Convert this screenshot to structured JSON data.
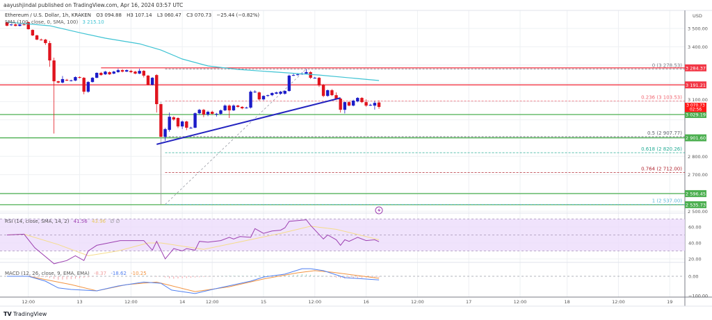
{
  "header": {
    "publisher_line": "aayushjindal published on TradingView.com, Apr 16, 2024 03:57 UTC"
  },
  "legend": {
    "symbol": "Ethereum / U.S. Dollar, 1h, KRAKEN",
    "open": "O3 094.88",
    "high": "H3 107.14",
    "low": "L3 060.47",
    "close": "C3 070.73",
    "change": "−25.44 (−0.82%)",
    "sma_label": "SMA (100, close, 0, SMA, 100)",
    "sma_value": "3 215.10"
  },
  "colors": {
    "up": "#1c1cc8",
    "down": "#e0141e",
    "sma": "#3ec3d3",
    "trendline": "#2424c0",
    "resistance": "#f23645",
    "support": "#4caf50",
    "rsi": "#9c3fb0",
    "rsi_ma": "#f5dc8a",
    "rsi_band": "#ecdcfb",
    "macd": "#4f7ff0",
    "macd_signal": "#f29340"
  },
  "price_axis": {
    "currency": "USD",
    "ticks": [
      {
        "value": 3500,
        "label": "3 500.00"
      },
      {
        "value": 3400,
        "label": "3 400.00"
      },
      {
        "value": 3100,
        "label": "3 100.00"
      },
      {
        "value": 2800,
        "label": "2 800.00"
      },
      {
        "value": 2700,
        "label": "2 700.00"
      },
      {
        "value": 2500,
        "label": "2 500.00"
      }
    ],
    "last_price": {
      "value": 3070.73,
      "label": "3 070.73",
      "countdown": "02:56"
    }
  },
  "levels": [
    {
      "price": 3284.37,
      "label": "3 284.37",
      "kind": "resistance",
      "from_hour": 22
    },
    {
      "price": 3191.21,
      "label": "3 191.21",
      "kind": "resistance",
      "from_hour": -2
    },
    {
      "price": 3029.19,
      "label": "3 029.19",
      "kind": "support",
      "from_hour": -2
    },
    {
      "price": 2901.6,
      "label": "2 901.60",
      "kind": "support",
      "from_hour": -2
    },
    {
      "price": 2596.45,
      "label": "2 596.45",
      "kind": "support",
      "from_hour": -2
    },
    {
      "price": 2535.73,
      "label": "2 535.73",
      "kind": "support",
      "from_hour": -2
    }
  ],
  "fib": {
    "from_hour": 37,
    "levels": [
      {
        "price": 3278.53,
        "label": "0 (3 278.53)",
        "color": "#787b86"
      },
      {
        "price": 3103.53,
        "label": "0.236 (3 103.53)",
        "color": "#f06570"
      },
      {
        "price": 2907.77,
        "label": "0.5 (2 907.77)",
        "color": "#5d606b"
      },
      {
        "price": 2820.26,
        "label": "0.618 (2 820.26)",
        "color": "#22ab94"
      },
      {
        "price": 2712.0,
        "label": "0.764 (2 712.00)",
        "color": "#b22833"
      },
      {
        "price": 2537.0,
        "label": "1 (2 537.00)",
        "color": "#5fb8d8"
      }
    ],
    "diagonal": [
      [
        37,
        2537.0
      ],
      [
        70,
        3278.53
      ]
    ]
  },
  "trendline": [
    [
      35,
      2866
    ],
    [
      78,
      3120
    ]
  ],
  "candles": [
    [
      3534,
      3538,
      3512,
      3515
    ],
    [
      3518,
      3524,
      3514,
      3522
    ],
    [
      3522,
      3526,
      3512,
      3514
    ],
    [
      3514,
      3524,
      3512,
      3522
    ],
    [
      3522,
      3526,
      3517,
      3520
    ],
    [
      3534,
      3538,
      3494,
      3496
    ],
    [
      3492,
      3495,
      3458,
      3462
    ],
    [
      3462,
      3466,
      3436,
      3439
    ],
    [
      3439,
      3445,
      3434,
      3437
    ],
    [
      3439,
      3443,
      3410,
      3420
    ],
    [
      3420,
      3432,
      3290,
      3325
    ],
    [
      3325,
      3340,
      2925,
      3211
    ],
    [
      3211,
      3214,
      3200,
      3204
    ],
    [
      3204,
      3240,
      3200,
      3223
    ],
    [
      3219,
      3224,
      3212,
      3215
    ],
    [
      3215,
      3220,
      3210,
      3216
    ],
    [
      3215,
      3238,
      3212,
      3234
    ],
    [
      3234,
      3238,
      3226,
      3230
    ],
    [
      3230,
      3234,
      3140,
      3154
    ],
    [
      3154,
      3212,
      3148,
      3207
    ],
    [
      3207,
      3234,
      3204,
      3230
    ],
    [
      3230,
      3260,
      3228,
      3257
    ],
    [
      3257,
      3262,
      3242,
      3245
    ],
    [
      3249,
      3268,
      3246,
      3264
    ],
    [
      3261,
      3265,
      3246,
      3249
    ],
    [
      3253,
      3268,
      3250,
      3264
    ],
    [
      3261,
      3280,
      3258,
      3272
    ],
    [
      3272,
      3278,
      3260,
      3264
    ],
    [
      3264,
      3276,
      3262,
      3272
    ],
    [
      3268,
      3274,
      3256,
      3261
    ],
    [
      3264,
      3268,
      3250,
      3253
    ],
    [
      3253,
      3280,
      3250,
      3268
    ],
    [
      3268,
      3272,
      3232,
      3242
    ],
    [
      3242,
      3246,
      3188,
      3192
    ],
    [
      3192,
      3234,
      3188,
      3230
    ],
    [
      3245,
      3250,
      3040,
      3086
    ],
    [
      3086,
      3100,
      2537,
      2907
    ],
    [
      2907,
      2956,
      2885,
      2949
    ],
    [
      2945,
      3040,
      2935,
      3017
    ],
    [
      3014,
      3020,
      2995,
      3002
    ],
    [
      3010,
      3014,
      2955,
      2964
    ],
    [
      2964,
      2996,
      2950,
      2991
    ],
    [
      2991,
      2995,
      2944,
      2957
    ],
    [
      2957,
      2962,
      2952,
      2957
    ],
    [
      2957,
      3040,
      2955,
      3036
    ],
    [
      3036,
      3060,
      3030,
      3055
    ],
    [
      3055,
      3060,
      3015,
      3029
    ],
    [
      3029,
      3050,
      3020,
      3044
    ],
    [
      3044,
      3050,
      3028,
      3033
    ],
    [
      3033,
      3038,
      3018,
      3033
    ],
    [
      3033,
      3056,
      3028,
      3052
    ],
    [
      3052,
      3084,
      3048,
      3078
    ],
    [
      3078,
      3084,
      3010,
      3052
    ],
    [
      3052,
      3084,
      3048,
      3078
    ],
    [
      3078,
      3082,
      3066,
      3071
    ],
    [
      3071,
      3075,
      3058,
      3063
    ],
    [
      3067,
      3072,
      3062,
      3067
    ],
    [
      3067,
      3160,
      3062,
      3154
    ],
    [
      3154,
      3162,
      3148,
      3154
    ],
    [
      3150,
      3155,
      3105,
      3112
    ],
    [
      3112,
      3134,
      3106,
      3131
    ],
    [
      3131,
      3138,
      3126,
      3135
    ],
    [
      3135,
      3150,
      3130,
      3147
    ],
    [
      3143,
      3154,
      3140,
      3150
    ],
    [
      3143,
      3158,
      3138,
      3154
    ],
    [
      3143,
      3162,
      3138,
      3158
    ],
    [
      3158,
      3248,
      3154,
      3242
    ],
    [
      3245,
      3252,
      3240,
      3245
    ],
    [
      3245,
      3256,
      3242,
      3249
    ],
    [
      3249,
      3260,
      3246,
      3253
    ],
    [
      3253,
      3278,
      3250,
      3261
    ],
    [
      3261,
      3266,
      3224,
      3230
    ],
    [
      3230,
      3235,
      3226,
      3230
    ],
    [
      3230,
      3234,
      3180,
      3188
    ],
    [
      3192,
      3196,
      3124,
      3131
    ],
    [
      3131,
      3166,
      3126,
      3162
    ],
    [
      3162,
      3168,
      3130,
      3135
    ],
    [
      3135,
      3150,
      3110,
      3116
    ],
    [
      3116,
      3120,
      3040,
      3055
    ],
    [
      3055,
      3100,
      3035,
      3097
    ],
    [
      3097,
      3102,
      3074,
      3078
    ],
    [
      3078,
      3110,
      3074,
      3105
    ],
    [
      3101,
      3124,
      3096,
      3120
    ],
    [
      3120,
      3124,
      3092,
      3097
    ],
    [
      3097,
      3112,
      3072,
      3078
    ],
    [
      3082,
      3088,
      3076,
      3082
    ],
    [
      3078,
      3104,
      3056,
      3093
    ],
    [
      3094.88,
      3107.14,
      3060.47,
      3070.73
    ]
  ],
  "sma": [
    [
      0,
      3535
    ],
    [
      10,
      3515
    ],
    [
      17,
      3477
    ],
    [
      23,
      3447
    ],
    [
      31,
      3416
    ],
    [
      36,
      3382
    ],
    [
      41,
      3333
    ],
    [
      47,
      3295
    ],
    [
      54,
      3276
    ],
    [
      63,
      3261
    ],
    [
      73,
      3245
    ],
    [
      87,
      3215.1
    ]
  ],
  "rsi": {
    "label": "RSI (14, close, SMA, 14, 2)",
    "value": "41.56",
    "ma_value": "43.96",
    "extra": "∅ ∅",
    "ticks": [
      {
        "value": 60,
        "label": "60.00"
      },
      {
        "value": 40,
        "label": "40.00"
      },
      {
        "value": 20,
        "label": "20.00"
      }
    ],
    "line": [
      [
        0,
        50
      ],
      [
        4,
        51
      ],
      [
        6.5,
        34
      ],
      [
        11,
        14
      ],
      [
        14,
        18
      ],
      [
        16,
        24
      ],
      [
        18,
        18
      ],
      [
        19,
        30
      ],
      [
        21,
        37
      ],
      [
        26.5,
        43
      ],
      [
        32,
        43
      ],
      [
        34,
        31
      ],
      [
        35,
        42
      ],
      [
        37,
        20
      ],
      [
        39,
        33
      ],
      [
        41,
        30
      ],
      [
        42,
        33
      ],
      [
        44,
        31
      ],
      [
        45,
        42
      ],
      [
        47,
        41
      ],
      [
        50,
        43
      ],
      [
        52,
        47
      ],
      [
        53,
        45
      ],
      [
        54.5,
        48
      ],
      [
        57,
        47
      ],
      [
        58,
        58
      ],
      [
        60,
        52
      ],
      [
        62,
        55
      ],
      [
        64,
        56
      ],
      [
        65,
        59
      ],
      [
        66,
        67
      ],
      [
        70,
        69
      ],
      [
        71,
        62
      ],
      [
        74,
        45
      ],
      [
        75,
        50
      ],
      [
        77,
        44
      ],
      [
        78,
        37
      ],
      [
        79,
        44
      ],
      [
        80,
        42
      ],
      [
        82,
        47
      ],
      [
        84,
        43
      ],
      [
        86,
        44
      ],
      [
        87,
        41.56
      ]
    ],
    "ma": [
      [
        0,
        50
      ],
      [
        4,
        51
      ],
      [
        12,
        38
      ],
      [
        19,
        24
      ],
      [
        26,
        30
      ],
      [
        33,
        40
      ],
      [
        36,
        40
      ],
      [
        46,
        32
      ],
      [
        55,
        42
      ],
      [
        64,
        52
      ],
      [
        71,
        61
      ],
      [
        77,
        57
      ],
      [
        84,
        48
      ],
      [
        87,
        43.96
      ]
    ]
  },
  "macd": {
    "label": "MACD (12, 26, close, 9, EMA, EMA)",
    "hist_value": "-8.37",
    "macd_value": "-18.62",
    "signal_value": "-10.25",
    "ticks": [
      {
        "value": 0,
        "label": "0.00"
      },
      {
        "value": -100,
        "label": "−100.00"
      }
    ],
    "macd_line": [
      [
        0,
        0
      ],
      [
        5,
        0
      ],
      [
        9,
        -25
      ],
      [
        12,
        -60
      ],
      [
        15,
        -68
      ],
      [
        21,
        -75
      ],
      [
        26,
        -50
      ],
      [
        32,
        -30
      ],
      [
        36,
        -36
      ],
      [
        38.5,
        -71
      ],
      [
        44,
        -89
      ],
      [
        48,
        -68
      ],
      [
        57,
        -25
      ],
      [
        60,
        -4
      ],
      [
        65,
        11
      ],
      [
        69,
        39
      ],
      [
        71,
        39
      ],
      [
        74,
        29
      ],
      [
        79,
        -7
      ],
      [
        87,
        -18.62
      ]
    ],
    "signal_line": [
      [
        0,
        0
      ],
      [
        5,
        0
      ],
      [
        15,
        -43
      ],
      [
        21,
        -75
      ],
      [
        28,
        -43
      ],
      [
        35,
        -30
      ],
      [
        38,
        -46
      ],
      [
        44,
        -79
      ],
      [
        52,
        -54
      ],
      [
        60,
        -14
      ],
      [
        68,
        18
      ],
      [
        72,
        29
      ],
      [
        76,
        21
      ],
      [
        87,
        -10.25
      ]
    ]
  },
  "time_axis": [
    {
      "hour": 5,
      "label": "12:00"
    },
    {
      "hour": 17,
      "label": "13"
    },
    {
      "hour": 29,
      "label": "12:00"
    },
    {
      "hour": 41,
      "label": "14"
    },
    {
      "hour": 48,
      "label": "12:00"
    },
    {
      "hour": 60,
      "label": "15"
    },
    {
      "hour": 72,
      "label": "12:00"
    },
    {
      "hour": 84,
      "label": "16"
    },
    {
      "hour": 96,
      "label": "12:00"
    },
    {
      "hour": 108,
      "label": "17"
    },
    {
      "hour": 120,
      "label": "12:00"
    },
    {
      "hour": 131,
      "label": "18"
    },
    {
      "hour": 143,
      "label": "12:00"
    },
    {
      "hour": 155,
      "label": "19"
    }
  ],
  "footer": {
    "brand": "TradingView",
    "logo_text": "TV"
  }
}
